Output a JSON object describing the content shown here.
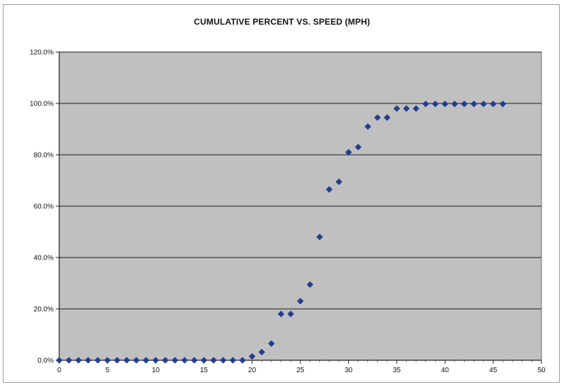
{
  "chart_data": {
    "type": "scatter",
    "title": "CUMULATIVE PERCENT VS. SPEED (MPH)",
    "xlabel": "",
    "ylabel": "",
    "xlim": [
      0,
      50
    ],
    "ylim": [
      0,
      120
    ],
    "x_ticks": [
      "0",
      "5",
      "10",
      "15",
      "20",
      "25",
      "30",
      "35",
      "40",
      "45",
      "50"
    ],
    "y_ticks": [
      "0.0%",
      "20.0%",
      "40.0%",
      "60.0%",
      "80.0%",
      "100.0%",
      "120.0%"
    ],
    "grid": "horizontal",
    "legend": "none",
    "marker": "diamond",
    "colors": {
      "marker": "#1f3f99",
      "plot_background": "#c0c0c0",
      "gridline": "#1a1a1a"
    },
    "series": [
      {
        "x": [
          0,
          1,
          2,
          3,
          4,
          5,
          6,
          7,
          8,
          9,
          10,
          11,
          12,
          13,
          14,
          15,
          16,
          17,
          18,
          19,
          20,
          21,
          22,
          23,
          24,
          25,
          26,
          27,
          28,
          29,
          30,
          31,
          32,
          33,
          34,
          35,
          36,
          37,
          38,
          39,
          40,
          41,
          42,
          43,
          44,
          45,
          46
        ],
        "y": [
          0,
          0,
          0,
          0,
          0,
          0,
          0,
          0,
          0,
          0,
          0,
          0,
          0,
          0,
          0,
          0,
          0,
          0,
          0,
          0,
          1.5,
          3.2,
          6.5,
          18,
          18,
          23,
          29.5,
          48,
          66.5,
          69.5,
          81,
          83,
          91,
          94.5,
          94.5,
          98,
          98,
          98,
          99.8,
          99.8,
          99.8,
          99.8,
          99.8,
          99.8,
          99.8,
          99.8,
          99.8
        ]
      }
    ]
  }
}
